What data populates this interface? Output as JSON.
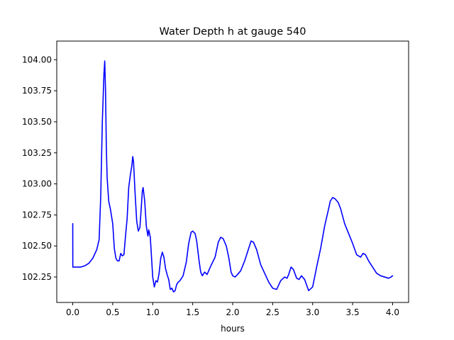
{
  "chart_data": {
    "type": "line",
    "title": "Water Depth h at gauge 540",
    "xlabel": "hours",
    "ylabel": "",
    "xlim": [
      -0.2,
      4.2
    ],
    "ylim": [
      102.045,
      104.15
    ],
    "xticks": [
      0.0,
      0.5,
      1.0,
      1.5,
      2.0,
      2.5,
      3.0,
      3.5,
      4.0
    ],
    "xtick_labels": [
      "0.0",
      "0.5",
      "1.0",
      "1.5",
      "2.0",
      "2.5",
      "3.0",
      "3.5",
      "4.0"
    ],
    "yticks": [
      102.25,
      102.5,
      102.75,
      103.0,
      103.25,
      103.5,
      103.75,
      104.0
    ],
    "ytick_labels": [
      "102.25",
      "102.50",
      "102.75",
      "103.00",
      "103.25",
      "103.50",
      "103.75",
      "104.00"
    ],
    "grid": false,
    "series": [
      {
        "name": "",
        "color": "#0000ff",
        "x": [
          0.0,
          0.001,
          0.1,
          0.15,
          0.2,
          0.25,
          0.3,
          0.33,
          0.35,
          0.37,
          0.39,
          0.4,
          0.41,
          0.42,
          0.43,
          0.45,
          0.47,
          0.5,
          0.52,
          0.54,
          0.56,
          0.58,
          0.6,
          0.62,
          0.64,
          0.66,
          0.68,
          0.7,
          0.72,
          0.74,
          0.75,
          0.76,
          0.78,
          0.8,
          0.82,
          0.84,
          0.86,
          0.87,
          0.88,
          0.9,
          0.92,
          0.94,
          0.95,
          0.97,
          1.0,
          1.02,
          1.04,
          1.06,
          1.08,
          1.1,
          1.12,
          1.14,
          1.16,
          1.18,
          1.2,
          1.22,
          1.24,
          1.26,
          1.28,
          1.3,
          1.32,
          1.34,
          1.38,
          1.42,
          1.45,
          1.48,
          1.5,
          1.53,
          1.55,
          1.58,
          1.6,
          1.62,
          1.65,
          1.68,
          1.72,
          1.75,
          1.78,
          1.82,
          1.85,
          1.88,
          1.92,
          1.95,
          1.98,
          2.0,
          2.03,
          2.06,
          2.1,
          2.15,
          2.2,
          2.23,
          2.26,
          2.3,
          2.35,
          2.4,
          2.45,
          2.5,
          2.55,
          2.6,
          2.65,
          2.68,
          2.7,
          2.73,
          2.76,
          2.8,
          2.83,
          2.86,
          2.9,
          2.95,
          3.0,
          3.05,
          3.1,
          3.15,
          3.2,
          3.22,
          3.25,
          3.28,
          3.32,
          3.35,
          3.4,
          3.45,
          3.5,
          3.55,
          3.6,
          3.63,
          3.66,
          3.7,
          3.75,
          3.8,
          3.85,
          3.9,
          3.95,
          3.98,
          4.0
        ],
        "values": [
          102.68,
          102.33,
          102.33,
          102.34,
          102.36,
          102.4,
          102.47,
          102.55,
          102.9,
          103.5,
          103.88,
          103.99,
          103.75,
          103.3,
          103.05,
          102.86,
          102.8,
          102.68,
          102.48,
          102.4,
          102.38,
          102.38,
          102.44,
          102.42,
          102.43,
          102.58,
          102.72,
          102.97,
          103.07,
          103.15,
          103.22,
          103.18,
          102.92,
          102.7,
          102.62,
          102.65,
          102.84,
          102.94,
          102.97,
          102.86,
          102.66,
          102.58,
          102.63,
          102.57,
          102.25,
          102.17,
          102.22,
          102.21,
          102.28,
          102.4,
          102.45,
          102.41,
          102.32,
          102.27,
          102.23,
          102.15,
          102.16,
          102.13,
          102.14,
          102.19,
          102.21,
          102.22,
          102.26,
          102.37,
          102.52,
          102.61,
          102.62,
          102.6,
          102.54,
          102.38,
          102.29,
          102.26,
          102.29,
          102.27,
          102.33,
          102.37,
          102.41,
          102.53,
          102.57,
          102.56,
          102.5,
          102.41,
          102.29,
          102.26,
          102.25,
          102.27,
          102.3,
          102.38,
          102.48,
          102.54,
          102.53,
          102.47,
          102.35,
          102.28,
          102.21,
          102.16,
          102.15,
          102.22,
          102.25,
          102.24,
          102.27,
          102.33,
          102.31,
          102.24,
          102.23,
          102.26,
          102.23,
          102.14,
          102.17,
          102.33,
          102.48,
          102.66,
          102.8,
          102.86,
          102.89,
          102.88,
          102.85,
          102.8,
          102.68,
          102.6,
          102.52,
          102.43,
          102.41,
          102.44,
          102.43,
          102.38,
          102.33,
          102.28,
          102.26,
          102.25,
          102.24,
          102.25,
          102.26
        ]
      }
    ]
  }
}
